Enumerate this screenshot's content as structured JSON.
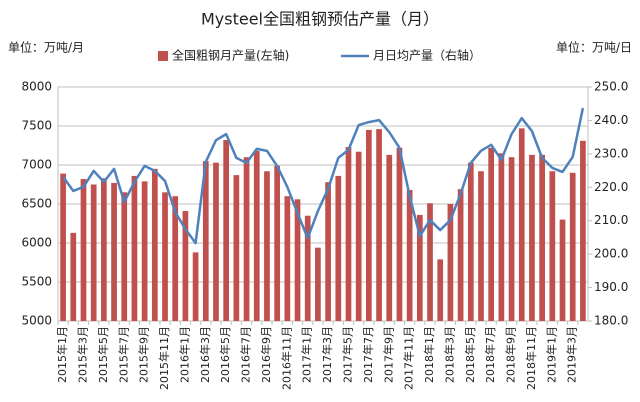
{
  "chart_data": {
    "type": "bar",
    "title": "Mysteel全国粗钢预估产量（月）",
    "y_unit_label": "单位：万吨/月",
    "y2_unit_label": "单位：万吨/日",
    "categories": [
      "2015年1月",
      null,
      "2015年3月",
      null,
      "2015年5月",
      null,
      "2015年7月",
      null,
      "2015年9月",
      null,
      "2015年11月",
      null,
      "2016年1月",
      null,
      "2016年3月",
      null,
      "2016年5月",
      null,
      "2016年7月",
      null,
      "2016年9月",
      null,
      "2016年11月",
      null,
      "2017年1月",
      null,
      "2017年3月",
      null,
      "2017年5月",
      null,
      "2017年7月",
      null,
      "2017年9月",
      null,
      "2017年11月",
      null,
      "2018年1月",
      null,
      "2018年3月",
      null,
      "2018年5月",
      null,
      "2018年7月",
      null,
      "2018年9月",
      null,
      "2018年11月",
      null,
      "2019年1月",
      null,
      "2019年3月",
      null
    ],
    "series": [
      {
        "name": "全国粗钢月产量(左轴)",
        "type": "bar",
        "color": "#c0504d",
        "values": [
          6890,
          6130,
          6820,
          6750,
          6830,
          6770,
          6650,
          6860,
          6790,
          6950,
          6650,
          6600,
          6410,
          5880,
          7050,
          7030,
          7320,
          6870,
          7100,
          7180,
          6920,
          6990,
          6600,
          6560,
          6350,
          5940,
          6780,
          6860,
          7230,
          7170,
          7450,
          7460,
          7130,
          7220,
          6680,
          6360,
          6510,
          5790,
          6500,
          6690,
          7030,
          6920,
          7220,
          7150,
          7100,
          7470,
          7130,
          7130,
          6920,
          6300,
          6900,
          7310
        ]
      },
      {
        "name": "月日均产量（右轴）",
        "type": "line",
        "axis": "y2",
        "color": "#4f81bd",
        "values": [
          223.1,
          218.9,
          220.1,
          224.9,
          221.6,
          225.5,
          215.6,
          221.6,
          226.4,
          224.9,
          221.9,
          212.6,
          207.5,
          203.3,
          227.6,
          234.1,
          235.9,
          228.8,
          227.3,
          231.5,
          230.9,
          226.4,
          220.1,
          212.3,
          204.8,
          212.9,
          219.5,
          228.8,
          231.2,
          238.6,
          239.5,
          240.1,
          236.5,
          231.8,
          217.4,
          205.4,
          210.2,
          207.2,
          210.2,
          218.0,
          227.3,
          230.9,
          232.7,
          228.2,
          235.9,
          240.7,
          236.8,
          228.8,
          225.8,
          224.6,
          229.1,
          243.7
        ]
      }
    ],
    "ylim": [
      5000,
      8000
    ],
    "yticks": [
      5000,
      5500,
      6000,
      6500,
      7000,
      7500,
      8000
    ],
    "y2lim": [
      180,
      250
    ],
    "y2ticks": [
      {
        "value": 180,
        "label": "180.0"
      },
      {
        "value": 190,
        "label": "190.0"
      },
      {
        "value": 200,
        "label": "200.0"
      },
      {
        "value": 210,
        "label": "210.0"
      },
      {
        "value": 220,
        "label": "220.0"
      },
      {
        "value": 230,
        "label": "230.0"
      },
      {
        "value": 240,
        "label": "240.0"
      },
      {
        "value": 250,
        "label": "250.0"
      }
    ],
    "grid": true,
    "legend": "top"
  }
}
